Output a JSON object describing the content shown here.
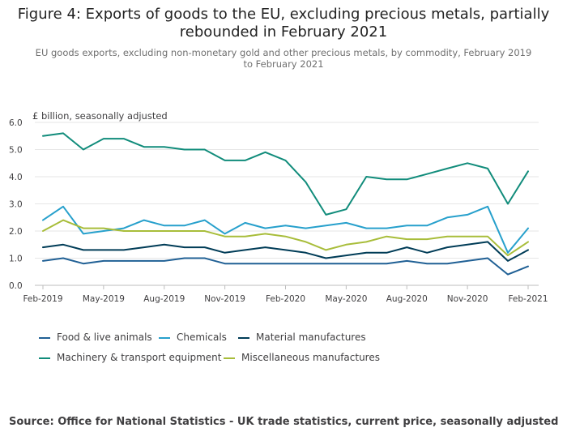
{
  "chart_data": {
    "type": "line",
    "title": "Figure 4: Exports of goods to the EU, excluding precious metals, partially rebounded in February 2021",
    "subtitle": "EU goods exports, excluding non-monetary gold and other precious metals, by commodity, February 2019 to February 2021",
    "ylabel": "£ billion, seasonally adjusted",
    "ylim": [
      0,
      6
    ],
    "yticks": [
      "0.0",
      "1.0",
      "2.0",
      "3.0",
      "4.0",
      "5.0",
      "6.0"
    ],
    "xtick_labels": [
      "Feb-2019",
      "May-2019",
      "Aug-2019",
      "Nov-2019",
      "Feb-2020",
      "May-2020",
      "Aug-2020",
      "Nov-2020",
      "Feb-2021"
    ],
    "grid": true,
    "legend_position": "bottom",
    "x": [
      "Feb-2019",
      "Mar-2019",
      "Apr-2019",
      "May-2019",
      "Jun-2019",
      "Jul-2019",
      "Aug-2019",
      "Sep-2019",
      "Oct-2019",
      "Nov-2019",
      "Dec-2019",
      "Jan-2020",
      "Feb-2020",
      "Mar-2020",
      "Apr-2020",
      "May-2020",
      "Jun-2020",
      "Jul-2020",
      "Aug-2020",
      "Sep-2020",
      "Oct-2020",
      "Nov-2020",
      "Dec-2020",
      "Jan-2021",
      "Feb-2021"
    ],
    "series": [
      {
        "name": "Food & live animals",
        "color": "#206095",
        "values": [
          0.9,
          1.0,
          0.8,
          0.9,
          0.9,
          0.9,
          0.9,
          1.0,
          1.0,
          0.8,
          0.8,
          0.8,
          0.8,
          0.8,
          0.8,
          0.8,
          0.8,
          0.8,
          0.9,
          0.8,
          0.8,
          0.9,
          1.0,
          0.4,
          0.7
        ]
      },
      {
        "name": "Chemicals",
        "color": "#27a0cc",
        "values": [
          2.4,
          2.9,
          1.9,
          2.0,
          2.1,
          2.4,
          2.2,
          2.2,
          2.4,
          1.9,
          2.3,
          2.1,
          2.2,
          2.1,
          2.2,
          2.3,
          2.1,
          2.1,
          2.2,
          2.2,
          2.5,
          2.6,
          2.9,
          1.2,
          2.1
        ]
      },
      {
        "name": "Material manufactures",
        "color": "#003c57",
        "values": [
          1.4,
          1.5,
          1.3,
          1.3,
          1.3,
          1.4,
          1.5,
          1.4,
          1.4,
          1.2,
          1.3,
          1.4,
          1.3,
          1.2,
          1.0,
          1.1,
          1.2,
          1.2,
          1.4,
          1.2,
          1.4,
          1.5,
          1.6,
          0.9,
          1.3
        ]
      },
      {
        "name": "Machinery & transport equipment",
        "color": "#118c7b",
        "values": [
          5.5,
          5.6,
          5.0,
          5.4,
          5.4,
          5.1,
          5.1,
          5.0,
          5.0,
          4.6,
          4.6,
          4.9,
          4.6,
          3.8,
          2.6,
          2.8,
          4.0,
          3.9,
          3.9,
          4.1,
          4.3,
          4.5,
          4.3,
          3.0,
          4.2
        ]
      },
      {
        "name": "Miscellaneous manufactures",
        "color": "#a8bd3a",
        "values": [
          2.0,
          2.4,
          2.1,
          2.1,
          2.0,
          2.0,
          2.0,
          2.0,
          2.0,
          1.8,
          1.8,
          1.9,
          1.8,
          1.6,
          1.3,
          1.5,
          1.6,
          1.8,
          1.7,
          1.7,
          1.8,
          1.8,
          1.8,
          1.1,
          1.6
        ]
      }
    ]
  },
  "source": "Source: Office for National Statistics - UK trade statistics, current price, seasonally adjusted"
}
